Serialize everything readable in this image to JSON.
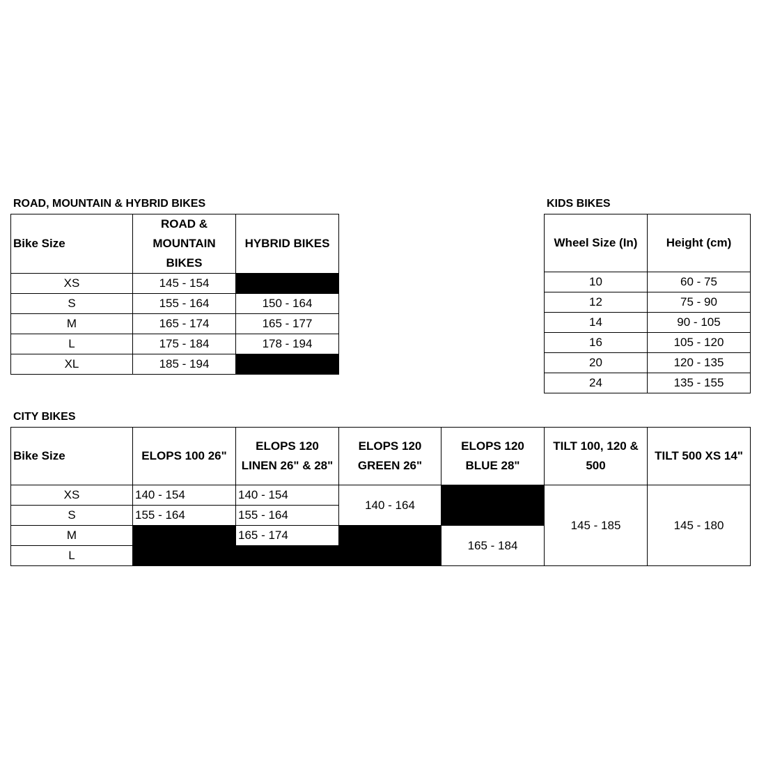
{
  "road": {
    "title": "ROAD, MOUNTAIN & HYBRID BIKES",
    "headers": [
      "Bike Size",
      "ROAD & MOUNTAIN BIKES",
      "HYBRID BIKES"
    ],
    "rows": [
      {
        "size": "XS",
        "road": "145 - 154",
        "hybrid": null
      },
      {
        "size": "S",
        "road": "155 - 164",
        "hybrid": "150 - 164"
      },
      {
        "size": "M",
        "road": "165 - 174",
        "hybrid": "165 - 177"
      },
      {
        "size": "L",
        "road": "175 - 184",
        "hybrid": "178 - 194"
      },
      {
        "size": "XL",
        "road": "185 - 194",
        "hybrid": null
      }
    ]
  },
  "kids": {
    "title": "KIDS BIKES",
    "headers": [
      "Wheel Size (In)",
      "Height (cm)"
    ],
    "rows": [
      [
        "10",
        "60 - 75"
      ],
      [
        "12",
        "75 - 90"
      ],
      [
        "14",
        "90 - 105"
      ],
      [
        "16",
        "105 - 120"
      ],
      [
        "20",
        "120 - 135"
      ],
      [
        "24",
        "135 - 155"
      ]
    ]
  },
  "city": {
    "title": "CITY BIKES",
    "headers": [
      "Bike Size",
      "ELOPS 100 26\"",
      "ELOPS 120 LINEN 26\" & 28\"",
      "ELOPS 120 GREEN 26\"",
      "ELOPS 120 BLUE 28\"",
      "TILT 100, 120 & 500",
      "TILT 500 XS 14\""
    ],
    "sizes": [
      "XS",
      "S",
      "M",
      "L"
    ],
    "elops100": [
      "140 - 154",
      "155 - 164"
    ],
    "linen": [
      "140 - 154",
      "155 - 164",
      "165 - 174"
    ],
    "green_xs_s": "140 - 164",
    "blue_m_l": "165 - 184",
    "tilt100": "145 - 185",
    "tilt500": "145 - 180"
  }
}
